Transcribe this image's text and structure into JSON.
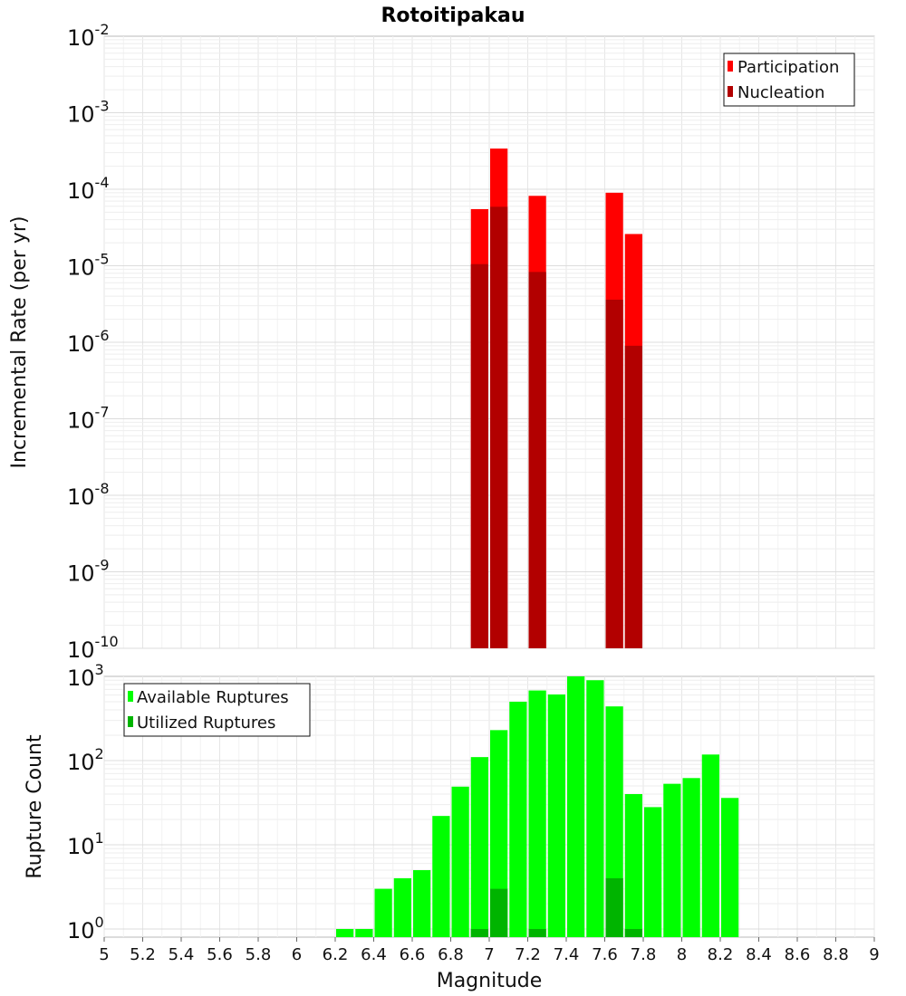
{
  "chart_data": [
    {
      "type": "bar",
      "title": "Rotoitipakau",
      "ylabel": "Incremental Rate (per yr)",
      "y_scale": "log",
      "ylim": [
        1e-10,
        0.01
      ],
      "xlim": [
        5,
        9
      ],
      "bar_width": 0.1,
      "legend": {
        "placement": "top-right"
      },
      "y_ticks": [
        {
          "base": "10",
          "exp": "-2"
        },
        {
          "base": "10",
          "exp": "-3"
        },
        {
          "base": "10",
          "exp": "-4"
        },
        {
          "base": "10",
          "exp": "-5"
        },
        {
          "base": "10",
          "exp": "-6"
        },
        {
          "base": "10",
          "exp": "-7"
        },
        {
          "base": "10",
          "exp": "-8"
        },
        {
          "base": "10",
          "exp": "-9"
        },
        {
          "base": "10",
          "exp": "-10"
        }
      ],
      "series": [
        {
          "name": "Participation",
          "color": "#ff0000",
          "x": [
            6.95,
            7.05,
            7.25,
            7.65,
            7.75
          ],
          "values": [
            5.5e-05,
            0.00034,
            8.2e-05,
            9e-05,
            2.6e-05
          ]
        },
        {
          "name": "Nucleation",
          "color": "#b20000",
          "x": [
            6.95,
            7.05,
            7.25,
            7.65,
            7.75
          ],
          "values": [
            1.05e-05,
            5.9e-05,
            8.3e-06,
            3.6e-06,
            9e-07
          ]
        }
      ]
    },
    {
      "type": "bar",
      "ylabel": "Rupture Count",
      "xlabel": "Magnitude",
      "y_scale": "log",
      "ylim": [
        0.8,
        1000
      ],
      "xlim": [
        5,
        9
      ],
      "bar_width": 0.1,
      "legend": {
        "placement": "top-left"
      },
      "y_ticks": [
        {
          "value": 1000,
          "base": "10",
          "exp": "3"
        },
        {
          "value": 100,
          "base": "10",
          "exp": "2"
        },
        {
          "value": 10,
          "base": "10",
          "exp": "1"
        },
        {
          "value": 1,
          "base": "10",
          "exp": "0"
        }
      ],
      "x_ticks": [
        "5",
        "5.2",
        "5.4",
        "5.6",
        "5.8",
        "6",
        "6.2",
        "6.4",
        "6.6",
        "6.8",
        "7",
        "7.2",
        "7.4",
        "7.6",
        "7.8",
        "8",
        "8.2",
        "8.4",
        "8.6",
        "8.8",
        "9"
      ],
      "series": [
        {
          "name": "Available Ruptures",
          "color": "#00ff00",
          "x": [
            6.25,
            6.35,
            6.45,
            6.55,
            6.65,
            6.75,
            6.85,
            6.95,
            7.05,
            7.15,
            7.25,
            7.35,
            7.45,
            7.55,
            7.65,
            7.75,
            7.85,
            7.95,
            8.05,
            8.15,
            8.25
          ],
          "values": [
            1,
            1,
            3,
            4,
            5,
            22,
            49,
            110,
            230,
            500,
            680,
            610,
            1000,
            900,
            440,
            40,
            28,
            53,
            62,
            118,
            36
          ]
        },
        {
          "name": "Utilized Ruptures",
          "color": "#00b400",
          "x": [
            6.95,
            7.05,
            7.25,
            7.65,
            7.75
          ],
          "values": [
            1,
            3,
            1,
            4,
            1
          ]
        }
      ]
    }
  ]
}
